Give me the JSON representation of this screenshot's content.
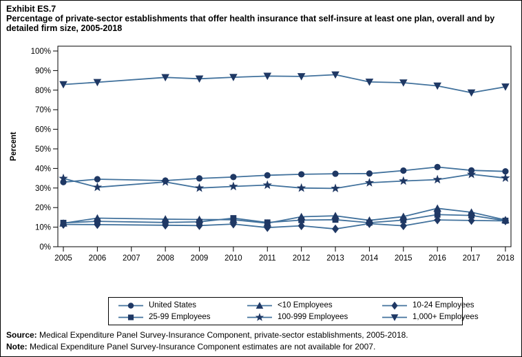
{
  "header": {
    "exhibit_label": "Exhibit ES.7",
    "title": "Percentage of private-sector establishments that offer health insurance that self-insure at least one plan, overall and by detailed firm size, 2005-2018"
  },
  "chart_data": {
    "type": "line",
    "title": "Percentage of private-sector establishments that offer health insurance that self-insure at least one plan, overall and by detailed firm size, 2005-2018",
    "xlabel": "",
    "ylabel": "Percent",
    "ylim": [
      0,
      100
    ],
    "ytick_step": 10,
    "ytick_suffix": "%",
    "grid": false,
    "legend_position": "bottom",
    "x": [
      2005,
      2006,
      2007,
      2008,
      2009,
      2010,
      2011,
      2012,
      2013,
      2014,
      2015,
      2016,
      2017,
      2018
    ],
    "missing_year_note": "no estimates for 2007",
    "series": [
      {
        "name": "United States",
        "marker": "circle",
        "values": [
          33.0,
          34.5,
          null,
          33.8,
          34.9,
          35.6,
          36.5,
          37.0,
          37.3,
          37.4,
          38.9,
          40.7,
          39.0,
          38.5
        ]
      },
      {
        "name": "<10 Employees",
        "marker": "triangle-up",
        "values": [
          12.0,
          14.6,
          null,
          14.1,
          13.9,
          13.8,
          12.0,
          15.3,
          15.8,
          13.5,
          15.4,
          19.6,
          17.6,
          13.7
        ]
      },
      {
        "name": "10-24 Employees",
        "marker": "diamond",
        "values": [
          11.4,
          11.3,
          null,
          11.0,
          10.8,
          11.6,
          9.8,
          10.7,
          9.1,
          11.8,
          10.7,
          13.7,
          13.4,
          13.2
        ]
      },
      {
        "name": "25-99 Employees",
        "marker": "square",
        "values": [
          12.2,
          13.0,
          null,
          12.4,
          12.7,
          14.6,
          12.4,
          13.6,
          13.8,
          12.3,
          13.6,
          16.4,
          16.0,
          13.3
        ]
      },
      {
        "name": "100-999 Employees",
        "marker": "star",
        "values": [
          34.9,
          30.4,
          null,
          33.1,
          30.0,
          30.8,
          31.5,
          30.0,
          29.8,
          32.7,
          33.6,
          34.3,
          37.0,
          35.1
        ]
      },
      {
        "name": "1,000+ Employees",
        "marker": "triangle-down",
        "values": [
          82.9,
          84.0,
          null,
          86.5,
          85.8,
          86.6,
          87.2,
          87.0,
          87.9,
          84.2,
          83.8,
          82.2,
          78.7,
          81.7
        ]
      }
    ],
    "colors": {
      "line": "#41719C",
      "marker": "#1F3864",
      "axis": "#000000"
    }
  },
  "footer": {
    "source_label": "Source:",
    "source_text": " Medical Expenditure Panel Survey-Insurance Component, private-sector establishments, 2005-2018.",
    "note_label": "Note:",
    "note_text": " Medical Expenditure Panel Survey-Insurance Component estimates are not available for 2007."
  }
}
